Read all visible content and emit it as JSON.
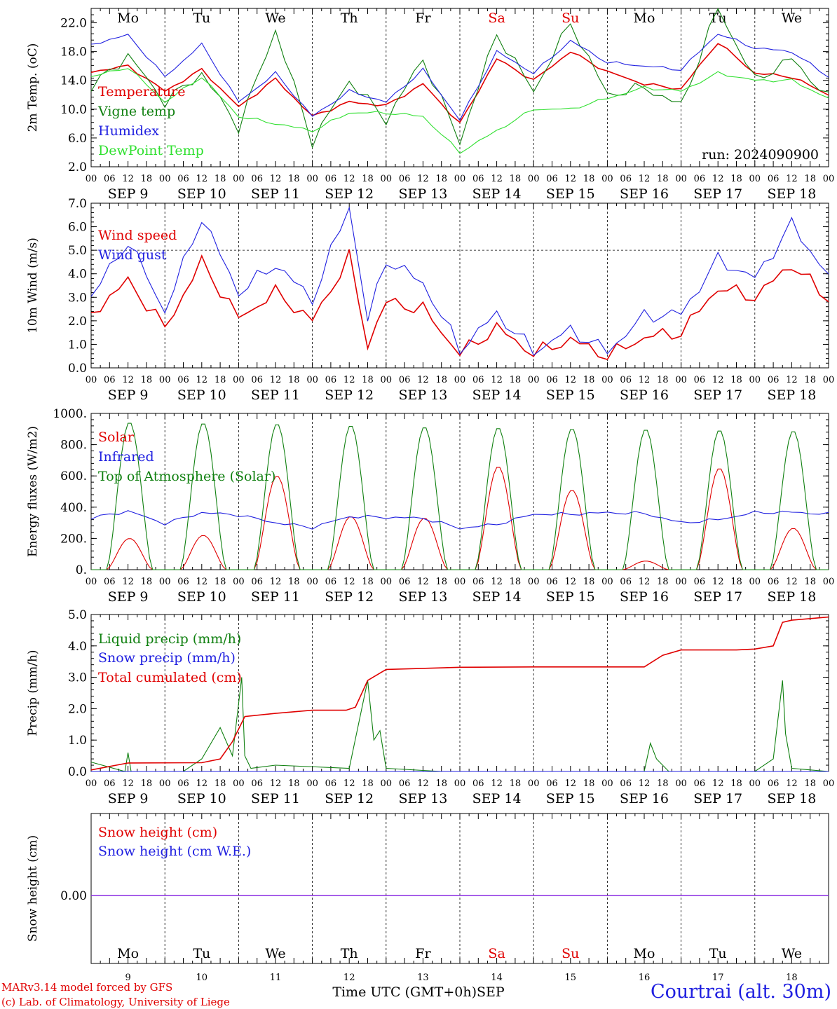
{
  "days": {
    "names": [
      "Mo",
      "Tu",
      "We",
      "Th",
      "Fr",
      "Sa",
      "Su",
      "Mo",
      "Tu",
      "We"
    ],
    "dates": [
      "SEP  9",
      "SEP 10",
      "SEP 11",
      "SEP 12",
      "SEP 13",
      "SEP 14",
      "SEP 15",
      "SEP 16",
      "SEP 17",
      "SEP 18"
    ],
    "numbers": [
      "9",
      "10",
      "11",
      "12",
      "13",
      "14",
      "15",
      "16",
      "17",
      "18"
    ],
    "hour_ticks": [
      "00",
      "06",
      "12",
      "18"
    ],
    "final_tick": "00"
  },
  "colors": {
    "weekday": "#000000",
    "weekend": "#e00000",
    "red": "#e00000",
    "darkgreen": "#108010",
    "blue": "#2020e0",
    "lightgreen": "#30e030",
    "purple": "#8a2be2"
  },
  "run_label": "run: 2024090900",
  "footer": {
    "model": "MARv3.14 model forced by GFS",
    "copyright": "(c) Lab. of Climatology, University of Liege",
    "axis_label": "Time UTC (GMT+0h)",
    "month": "SEP",
    "station": "Courtrai (alt. 30m)"
  },
  "chart_data": [
    {
      "type": "line",
      "ylabel": "2m Temp. (oC)",
      "ylim": [
        2,
        24
      ],
      "yticks": [
        "22.0",
        "18.0",
        "14.0",
        "10.0",
        "6.0",
        "2.0"
      ],
      "x_unit": "hours since SEP 9 00 UTC",
      "series": [
        {
          "name": "Temperature",
          "color": "red",
          "x": [
            0,
            12,
            24,
            36,
            48,
            60,
            72,
            84,
            96,
            108,
            120,
            132,
            144,
            156,
            168,
            180,
            192,
            204,
            216,
            228,
            240
          ],
          "values": [
            15.2,
            16.0,
            12.5,
            15.5,
            10.3,
            14.2,
            9.0,
            11.0,
            10.5,
            13.5,
            8.0,
            17.0,
            14.0,
            18.0,
            15.2,
            13.5,
            12.8,
            19.3,
            15.0,
            14.5,
            12.0
          ]
        },
        {
          "name": "Vigne temp",
          "color": "darkgreen",
          "x": [
            0,
            12,
            24,
            36,
            48,
            60,
            72,
            84,
            96,
            108,
            120,
            132,
            144,
            156,
            168,
            180,
            192,
            204,
            216,
            228,
            240
          ],
          "values": [
            13.0,
            17.5,
            11.0,
            15.0,
            7.5,
            21.0,
            5.5,
            14.0,
            8.5,
            17.0,
            5.5,
            20.5,
            12.5,
            22.0,
            12.0,
            13.0,
            10.5,
            24.0,
            14.0,
            17.0,
            11.5
          ]
        },
        {
          "name": "Humidex",
          "color": "blue",
          "x": [
            0,
            12,
            24,
            36,
            48,
            60,
            72,
            84,
            96,
            108,
            120,
            132,
            144,
            156,
            168,
            180,
            192,
            204,
            216,
            228,
            240
          ],
          "values": [
            19.0,
            20.3,
            14.5,
            19.0,
            11.0,
            15.0,
            9.0,
            12.5,
            11.0,
            15.5,
            8.5,
            18.0,
            15.0,
            19.5,
            16.5,
            16.0,
            15.5,
            20.5,
            18.5,
            18.0,
            14.5
          ]
        },
        {
          "name": "DewPoint Temp",
          "color": "lightgreen",
          "x": [
            0,
            12,
            24,
            36,
            48,
            60,
            72,
            84,
            96,
            108,
            120,
            132,
            144,
            156,
            168,
            180,
            192,
            204,
            216,
            228,
            240
          ],
          "values": [
            14.5,
            15.8,
            11.0,
            14.5,
            9.0,
            8.0,
            7.0,
            9.5,
            9.5,
            9.0,
            4.0,
            7.0,
            10.0,
            10.0,
            11.5,
            13.0,
            12.5,
            15.0,
            14.0,
            14.0,
            11.5
          ]
        }
      ]
    },
    {
      "type": "line",
      "ylabel": "10m Wind (m/s)",
      "ylim": [
        0,
        7
      ],
      "yticks": [
        "7.0",
        "6.0",
        "5.0",
        "4.0",
        "3.0",
        "2.0",
        "1.0",
        "0.0"
      ],
      "reference_line": 5.0,
      "series": [
        {
          "name": "Wind speed",
          "color": "red",
          "x": [
            0,
            12,
            24,
            36,
            48,
            60,
            72,
            84,
            90,
            96,
            108,
            120,
            132,
            144,
            156,
            168,
            180,
            192,
            204,
            216,
            228,
            240
          ],
          "values": [
            2.3,
            3.7,
            1.7,
            4.5,
            2.1,
            3.2,
            2.0,
            4.7,
            1.0,
            2.8,
            2.5,
            0.6,
            1.7,
            0.6,
            1.2,
            0.5,
            1.3,
            1.5,
            3.4,
            3.0,
            4.4,
            2.9
          ]
        },
        {
          "name": "Wind gust",
          "color": "blue",
          "x": [
            0,
            12,
            24,
            36,
            48,
            60,
            72,
            84,
            90,
            96,
            108,
            120,
            132,
            144,
            156,
            168,
            180,
            192,
            204,
            216,
            228,
            240
          ],
          "values": [
            3.0,
            5.4,
            2.4,
            6.4,
            3.2,
            4.4,
            2.9,
            6.9,
            2.0,
            4.6,
            3.6,
            0.8,
            2.3,
            0.7,
            1.6,
            0.7,
            2.2,
            2.3,
            4.6,
            3.8,
            6.1,
            3.9
          ]
        }
      ]
    },
    {
      "type": "line",
      "ylabel": "Energy fluxes (W/m2)",
      "ylim": [
        0,
        1000
      ],
      "yticks": [
        "1000.",
        "800.",
        "600.",
        "400.",
        "200.",
        "0."
      ],
      "series": [
        {
          "name": "Solar",
          "color": "red",
          "daily_peak": [
            200,
            220,
            600,
            340,
            330,
            660,
            510,
            55,
            650,
            265
          ]
        },
        {
          "name": "Infrared",
          "color": "blue",
          "x": [
            0,
            12,
            24,
            36,
            48,
            60,
            72,
            84,
            96,
            108,
            120,
            132,
            144,
            156,
            168,
            180,
            192,
            204,
            216,
            228,
            240
          ],
          "values": [
            330,
            375,
            295,
            365,
            350,
            300,
            270,
            340,
            335,
            330,
            265,
            290,
            355,
            355,
            365,
            360,
            300,
            320,
            365,
            368,
            355
          ]
        },
        {
          "name": "Top of Atmosphere (Solar)",
          "color": "darkgreen",
          "daily_peak": [
            945,
            940,
            935,
            925,
            915,
            910,
            905,
            900,
            895,
            890
          ]
        }
      ]
    },
    {
      "type": "line",
      "ylabel": "Precip (mm/h)",
      "ylim": [
        0,
        5
      ],
      "yticks": [
        "5.0",
        "4.0",
        "3.0",
        "2.0",
        "1.0",
        "0.0"
      ],
      "series": [
        {
          "name": "Liquid precip (mm/h)",
          "color": "darkgreen",
          "x": [
            0,
            11,
            12,
            13,
            30,
            36,
            42,
            46,
            49,
            50,
            52,
            60,
            84,
            90,
            92,
            94,
            96,
            114,
            180,
            182,
            184,
            188,
            216,
            222,
            225,
            226,
            228,
            240
          ],
          "values": [
            0.3,
            0.0,
            0.6,
            0.0,
            0.0,
            0.4,
            1.4,
            0.5,
            3.0,
            0.5,
            0.1,
            0.2,
            0.1,
            2.9,
            1.0,
            1.3,
            0.1,
            0.0,
            0.0,
            0.9,
            0.4,
            0.0,
            0.0,
            0.4,
            2.9,
            1.2,
            0.1,
            0.0
          ]
        },
        {
          "name": "Snow precip (mm/h)",
          "color": "blue",
          "x": [
            0,
            240
          ],
          "values": [
            0,
            0
          ]
        },
        {
          "name": "Total cumulated (cm)",
          "color": "red",
          "x": [
            0,
            12,
            36,
            42,
            46,
            50,
            60,
            72,
            83,
            86,
            90,
            96,
            120,
            144,
            156,
            180,
            186,
            192,
            210,
            216,
            222,
            225,
            228,
            240
          ],
          "values": [
            0.05,
            0.27,
            0.28,
            0.4,
            0.95,
            1.75,
            1.85,
            1.95,
            1.95,
            2.05,
            2.9,
            3.25,
            3.32,
            3.33,
            3.33,
            3.33,
            3.7,
            3.87,
            3.87,
            3.9,
            4.0,
            4.75,
            4.82,
            4.92
          ]
        }
      ]
    },
    {
      "type": "line",
      "ylabel": "Snow height (cm)",
      "yticks": [
        "0.00"
      ],
      "series": [
        {
          "name": "Snow height (cm)",
          "color": "red",
          "x": [
            0,
            240
          ],
          "values": [
            0,
            0
          ]
        },
        {
          "name": "Snow height (cm W.E.)",
          "color": "blue",
          "x": [
            0,
            240
          ],
          "values": [
            0,
            0
          ]
        }
      ]
    }
  ]
}
